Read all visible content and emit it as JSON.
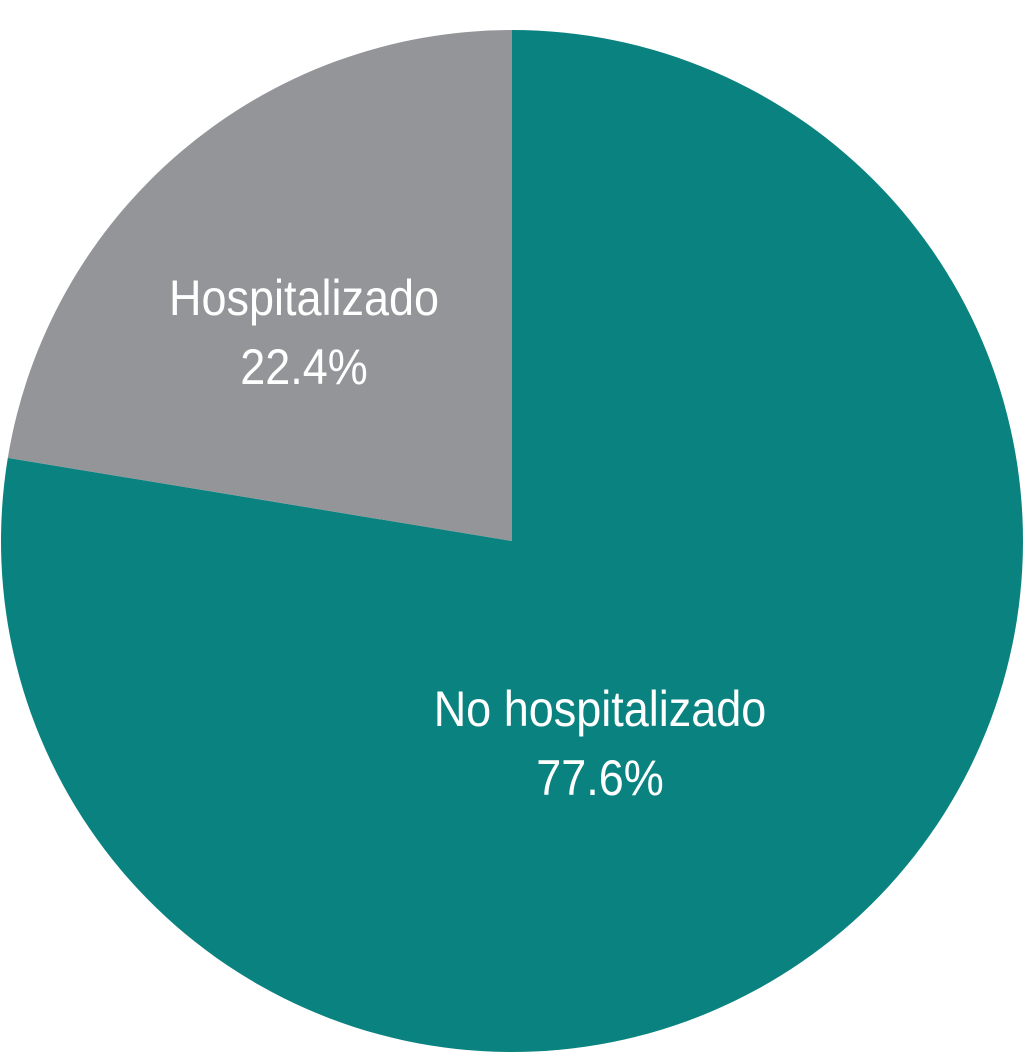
{
  "chart_data": {
    "type": "pie",
    "start": "top",
    "slices": [
      {
        "label": "No hospitalizado",
        "value": 77.6,
        "value_label": "77.6%",
        "color": "#0A8380",
        "direction": "clockwise"
      },
      {
        "label": "Hospitalizado",
        "value": 22.4,
        "value_label": "22.4%",
        "color": "#939598"
      }
    ]
  }
}
